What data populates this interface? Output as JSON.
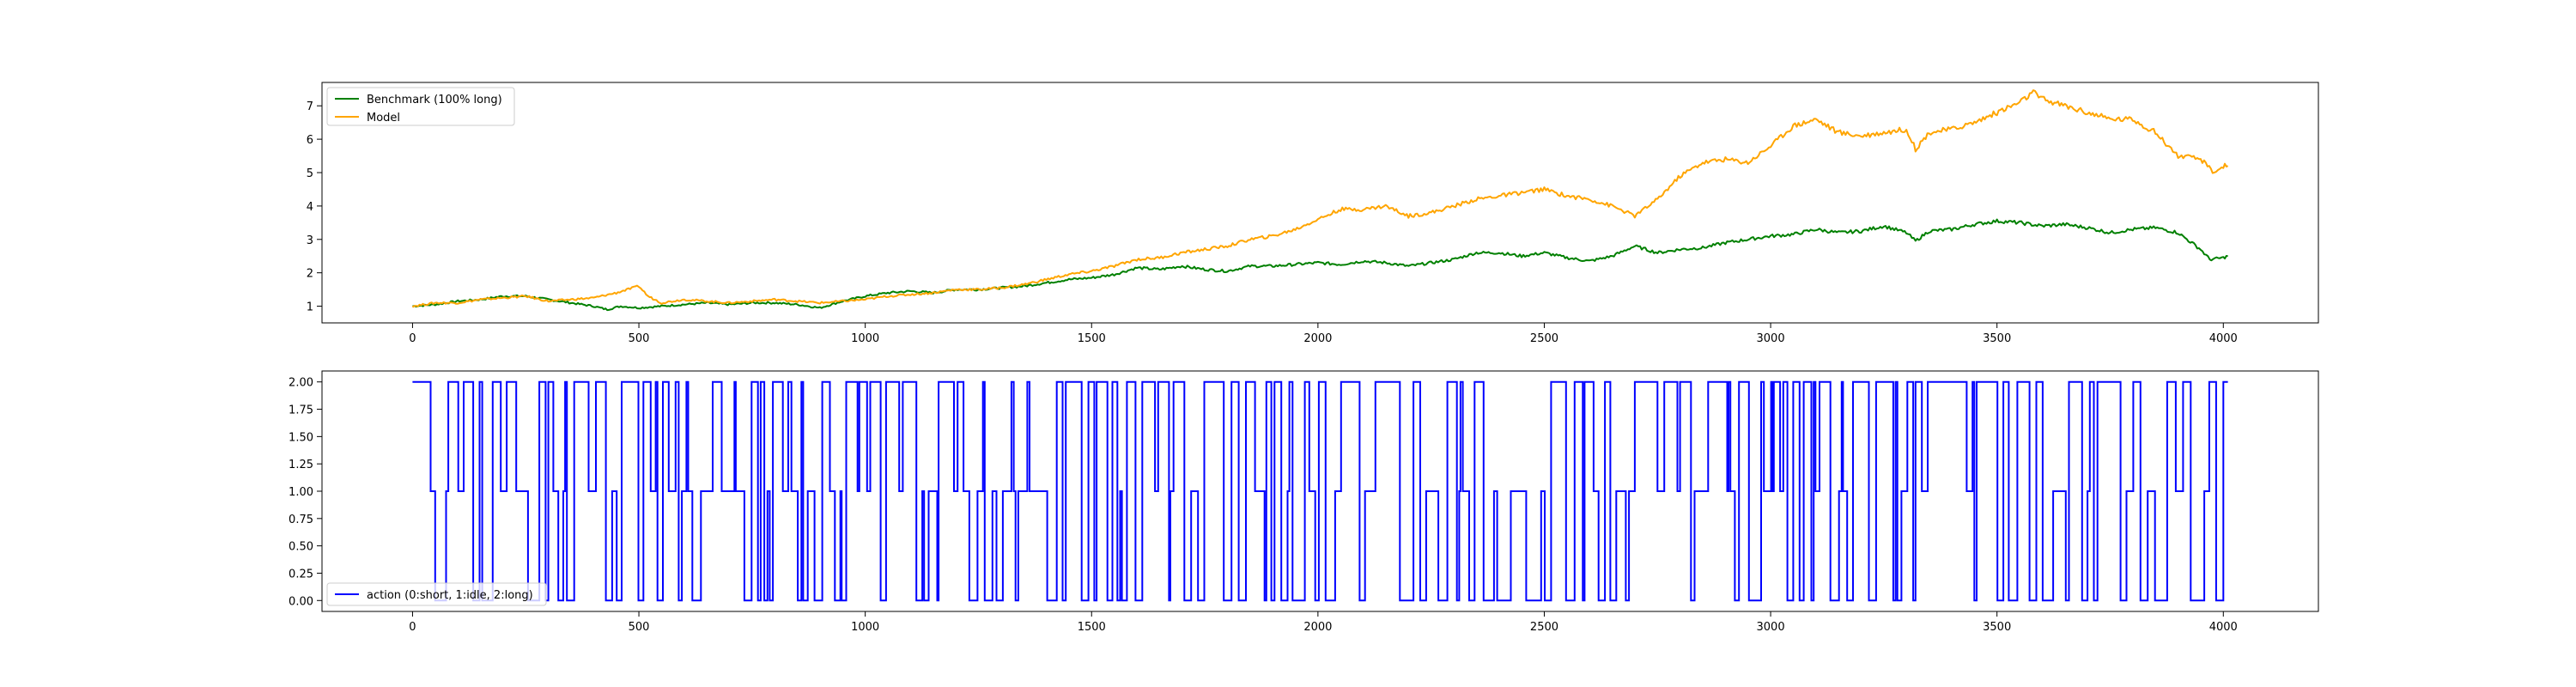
{
  "chart_data": [
    {
      "type": "line",
      "title": "",
      "xlabel": "",
      "ylabel": "",
      "xlim": [
        -200,
        4210
      ],
      "ylim": [
        0.5,
        7.7
      ],
      "xticks": [
        0,
        500,
        1000,
        1500,
        2000,
        2500,
        3000,
        3500,
        4000
      ],
      "yticks": [
        1,
        2,
        3,
        4,
        5,
        6,
        7
      ],
      "grid": false,
      "legend": "top-left",
      "series": [
        {
          "name": "Benchmark (100% long)",
          "color": "#008000",
          "x": [
            0,
            50,
            100,
            150,
            200,
            250,
            300,
            350,
            400,
            430,
            460,
            500,
            550,
            600,
            650,
            700,
            750,
            800,
            850,
            900,
            950,
            1000,
            1050,
            1100,
            1150,
            1200,
            1250,
            1300,
            1350,
            1400,
            1450,
            1500,
            1550,
            1600,
            1650,
            1700,
            1750,
            1800,
            1850,
            1900,
            1950,
            2000,
            2050,
            2100,
            2150,
            2200,
            2250,
            2300,
            2350,
            2400,
            2450,
            2500,
            2550,
            2600,
            2650,
            2700,
            2750,
            2800,
            2850,
            2900,
            2950,
            3000,
            3050,
            3100,
            3150,
            3200,
            3250,
            3300,
            3320,
            3350,
            3400,
            3450,
            3500,
            3550,
            3600,
            3650,
            3700,
            3750,
            3800,
            3850,
            3900,
            3950,
            3970,
            4000,
            4010
          ],
          "y": [
            1.0,
            1.05,
            1.15,
            1.2,
            1.3,
            1.3,
            1.2,
            1.1,
            1.0,
            0.9,
            1.0,
            0.95,
            1.0,
            1.05,
            1.1,
            1.05,
            1.1,
            1.1,
            1.05,
            0.95,
            1.15,
            1.3,
            1.4,
            1.45,
            1.4,
            1.5,
            1.5,
            1.55,
            1.6,
            1.7,
            1.8,
            1.85,
            1.95,
            2.15,
            2.1,
            2.2,
            2.1,
            2.05,
            2.2,
            2.2,
            2.25,
            2.3,
            2.25,
            2.35,
            2.3,
            2.2,
            2.3,
            2.4,
            2.6,
            2.6,
            2.5,
            2.6,
            2.45,
            2.35,
            2.5,
            2.8,
            2.6,
            2.7,
            2.75,
            2.9,
            3.0,
            3.1,
            3.15,
            3.3,
            3.2,
            3.25,
            3.4,
            3.2,
            2.95,
            3.25,
            3.3,
            3.45,
            3.55,
            3.5,
            3.4,
            3.45,
            3.35,
            3.2,
            3.3,
            3.35,
            3.2,
            2.7,
            2.4,
            2.45,
            2.5
          ]
        },
        {
          "name": "Model",
          "color": "#ffa500",
          "x": [
            0,
            50,
            100,
            150,
            200,
            250,
            300,
            350,
            400,
            450,
            500,
            520,
            550,
            600,
            650,
            700,
            750,
            800,
            850,
            900,
            950,
            1000,
            1050,
            1100,
            1150,
            1200,
            1250,
            1300,
            1350,
            1400,
            1450,
            1500,
            1550,
            1600,
            1650,
            1700,
            1750,
            1800,
            1850,
            1900,
            1950,
            2000,
            2050,
            2100,
            2150,
            2200,
            2250,
            2300,
            2350,
            2400,
            2450,
            2500,
            2550,
            2600,
            2650,
            2700,
            2750,
            2800,
            2850,
            2900,
            2950,
            3000,
            3050,
            3100,
            3150,
            3200,
            3250,
            3300,
            3320,
            3350,
            3400,
            3450,
            3500,
            3550,
            3580,
            3600,
            3650,
            3700,
            3750,
            3800,
            3850,
            3900,
            3950,
            3980,
            4000,
            4010
          ],
          "y": [
            1.0,
            1.1,
            1.1,
            1.2,
            1.25,
            1.3,
            1.15,
            1.2,
            1.25,
            1.4,
            1.6,
            1.3,
            1.1,
            1.2,
            1.15,
            1.1,
            1.15,
            1.2,
            1.15,
            1.1,
            1.15,
            1.2,
            1.3,
            1.35,
            1.4,
            1.5,
            1.5,
            1.55,
            1.65,
            1.8,
            1.95,
            2.05,
            2.2,
            2.4,
            2.45,
            2.6,
            2.7,
            2.8,
            3.0,
            3.1,
            3.3,
            3.6,
            3.9,
            3.9,
            4.0,
            3.7,
            3.8,
            4.0,
            4.2,
            4.3,
            4.4,
            4.5,
            4.3,
            4.2,
            4.0,
            3.7,
            4.2,
            4.9,
            5.3,
            5.4,
            5.3,
            5.8,
            6.4,
            6.6,
            6.2,
            6.1,
            6.2,
            6.3,
            5.7,
            6.2,
            6.3,
            6.5,
            6.8,
            7.1,
            7.4,
            7.2,
            7.0,
            6.8,
            6.6,
            6.6,
            6.2,
            5.5,
            5.4,
            5.0,
            5.2,
            5.2
          ]
        }
      ]
    },
    {
      "type": "line",
      "title": "",
      "xlabel": "",
      "ylabel": "",
      "xlim": [
        -200,
        4210
      ],
      "ylim": [
        -0.1,
        2.1
      ],
      "xticks": [
        0,
        500,
        1000,
        1500,
        2000,
        2500,
        3000,
        3500,
        4000
      ],
      "yticks": [
        "0.00",
        "0.25",
        "0.50",
        "0.75",
        "1.00",
        "1.25",
        "1.50",
        "1.75",
        "2.00"
      ],
      "grid": false,
      "legend": "bottom-left",
      "series": [
        {
          "name": "action (0:short, 1:idle, 2:long)",
          "color": "#0000ff",
          "x_range": [
            0,
            4010
          ],
          "values_domain": [
            0,
            1,
            2
          ],
          "start_value": 2,
          "end_value": 2
        }
      ]
    }
  ]
}
